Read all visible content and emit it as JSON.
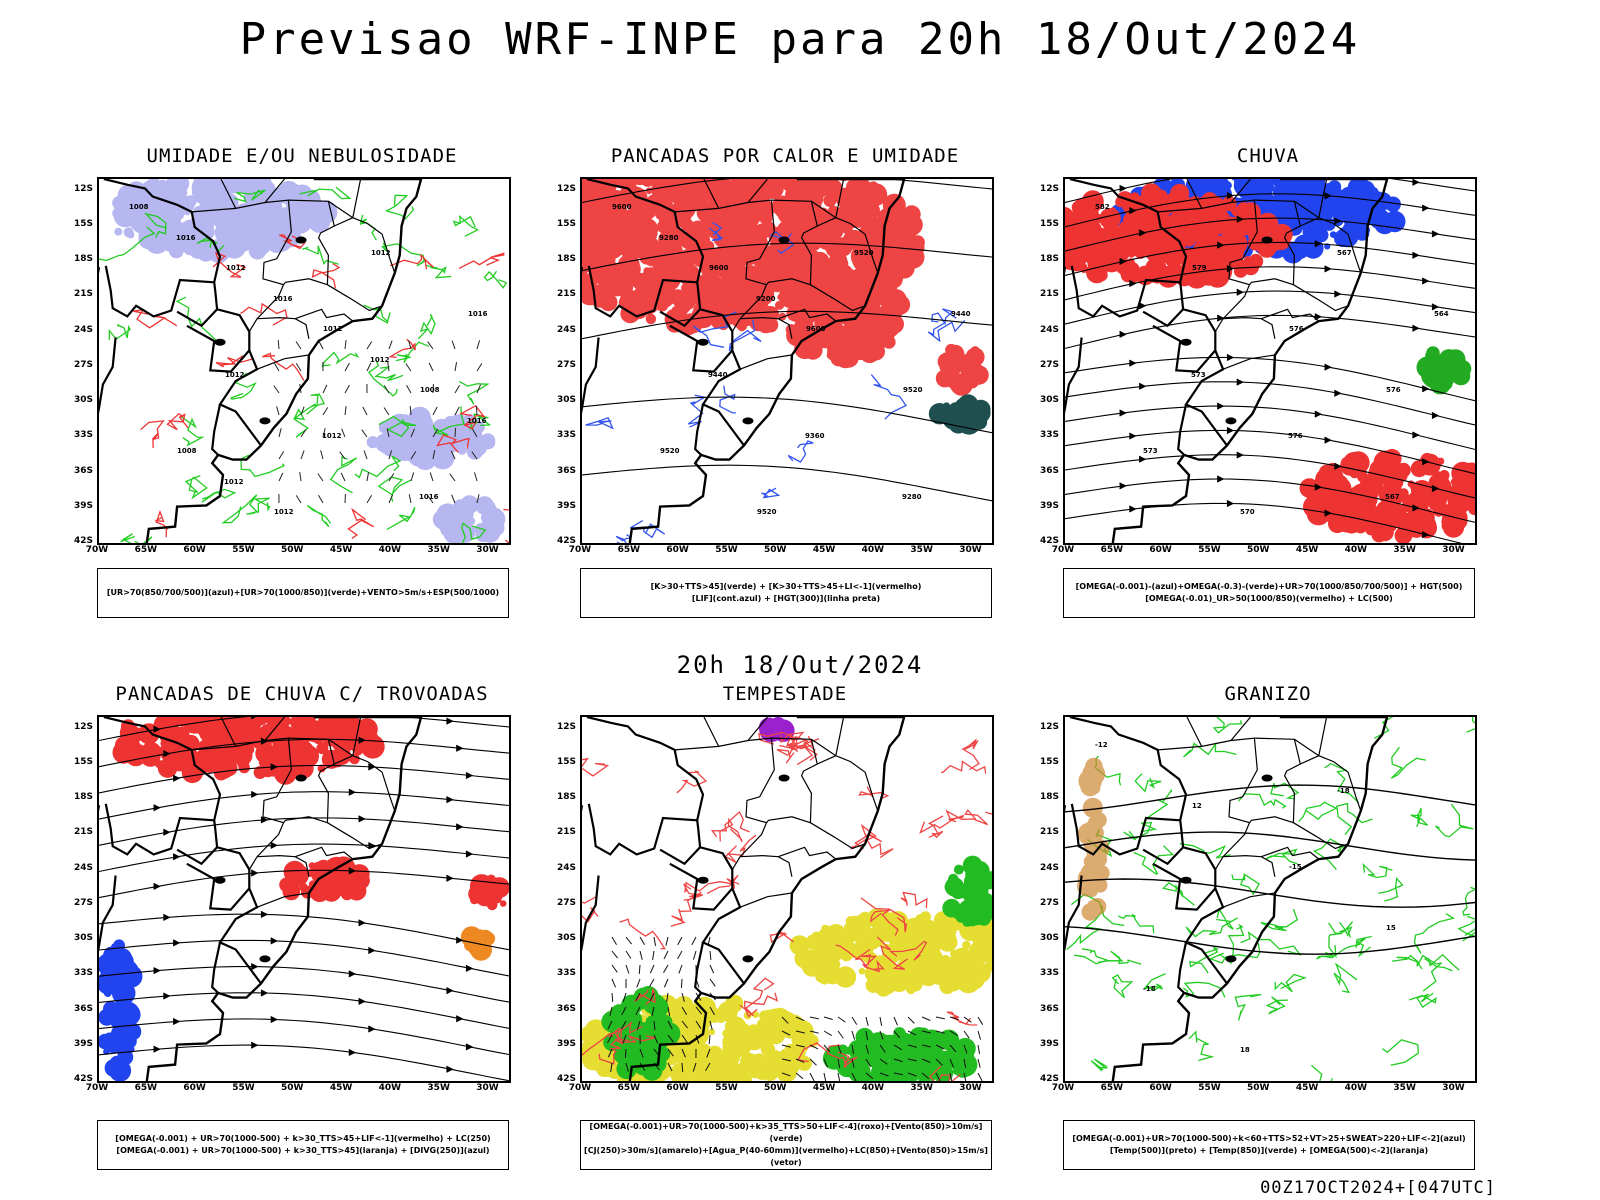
{
  "title": "Previsao WRF-INPE  para 20h 18/Out/2024",
  "mid_title": "20h 18/Out/2024",
  "footer": "00Z17OCT2024+[047UTC]",
  "lat_ticks": [
    "12S",
    "15S",
    "18S",
    "21S",
    "24S",
    "27S",
    "30S",
    "33S",
    "36S",
    "39S",
    "42S"
  ],
  "lon_ticks": [
    "70W",
    "65W",
    "60W",
    "55W",
    "50W",
    "45W",
    "40W",
    "35W",
    "30W"
  ],
  "panels": [
    {
      "id": "umidade",
      "title": "UMIDADE E/OU NEBULOSIDADE",
      "legend": [
        "[UR>70(850/700/500)](azul)+[UR>70(1000/850)](verde)+VENTO>5m/s+ESP(500/1000)"
      ],
      "colors": {
        "fill1": "#aaaaee",
        "line1": "#22cc22",
        "line2": "#ee3333"
      },
      "labels": [
        "1008",
        "1012",
        "1012",
        "1008",
        "1008",
        "1012",
        "1012",
        "1016",
        "1012",
        "1012",
        "1016",
        "1016",
        "1016",
        "1012",
        "1016",
        "1012"
      ]
    },
    {
      "id": "pancadas-calor",
      "title": "PANCADAS POR CALOR E UMIDADE",
      "legend": [
        "[K>30+TTS>45](verde) + [K>30+TTS>45+LI<-1](vermelho)",
        "[LIF](cont.azul) + [HGT(300)](linha preta)"
      ],
      "colors": {
        "fill1": "#ee4444",
        "fill2": "#1f4f4f",
        "line1": "#3355ee"
      },
      "labels": [
        "9600",
        "9600",
        "9600",
        "9520",
        "9520",
        "9520",
        "9520",
        "9440",
        "9440",
        "9360",
        "9280",
        "9280",
        "9200"
      ]
    },
    {
      "id": "chuva",
      "title": "CHUVA",
      "legend": [
        "[OMEGA(-0.001)-(azul)+OMEGA(-0.3)-(verde)+UR>70(1000/850/700/500)] + HGT(500)",
        "[OMEGA(-0.01)_UR>50(1000/850)(vermelho) + LC(500)"
      ],
      "colors": {
        "fill1": "#ee3333",
        "fill2": "#2244ee",
        "fill3": "#22aa22"
      },
      "labels": [
        "582",
        "579",
        "576",
        "576",
        "573",
        "570",
        "567",
        "564",
        "573",
        "576",
        "567"
      ]
    },
    {
      "id": "trovoadas",
      "title": "PANCADAS DE CHUVA C/ TROVOADAS",
      "legend": [
        "[OMEGA(-0.001) + UR>70(1000-500) + k>30_TTS>45+LIF<-1](vermelho) + LC(250)",
        "[OMEGA(-0.001) + UR>70(1000-500) + k>30_TTS>45](laranja) + [DIVG(250)](azul)"
      ],
      "colors": {
        "fill1": "#ee3333",
        "fill2": "#2244ee",
        "fill3": "#ee8822"
      },
      "labels": []
    },
    {
      "id": "tempestade",
      "title": "TEMPESTADE",
      "legend": [
        "[OMEGA(-0.001)+UR>70(1000-500)+k>35_TTS>50+LIF<-4](roxo)+[Vento(850)>10m/s](verde)",
        "[CJ(250)>30m/s](amarelo)+[Agua_P(40-60mm)](vermelho)+LC(850)+[Vento(850)>15m/s](vetor)"
      ],
      "colors": {
        "fill1": "#e6dd33",
        "fill2": "#22bb22",
        "line1": "#ee4444",
        "fill3": "#9922cc"
      },
      "labels": []
    },
    {
      "id": "granizo",
      "title": "GRANIZO",
      "legend": [
        "[OMEGA(-0.001)+UR>70(1000-500)+k<60+TTS>52+VT>25+SWEAT>220+LIF<-2](azul)",
        "[Temp(500)](preto) + [Temp(850)](verde) + [OMEGA(500)<-2](laranja)"
      ],
      "colors": {
        "line1": "#22cc22",
        "line2": "#cc8833"
      },
      "labels": [
        "-12",
        "12",
        "-15",
        "15",
        "-18",
        "18",
        "-18"
      ]
    }
  ]
}
